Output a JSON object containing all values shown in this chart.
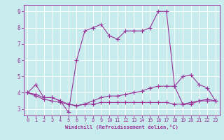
{
  "xlabel": "Windchill (Refroidissement éolien,°C)",
  "background_color": "#c8ecee",
  "grid_color": "#ffffff",
  "line_color": "#993399",
  "xmin": 0,
  "xmax": 23,
  "ymin": 3,
  "ymax": 9,
  "series": [
    [
      4.0,
      4.5,
      3.7,
      3.7,
      3.5,
      2.8,
      6.0,
      7.8,
      8.0,
      8.2,
      7.5,
      7.3,
      7.8,
      7.8,
      7.8,
      8.0,
      9.0,
      9.0,
      4.4,
      5.0,
      5.1,
      4.5,
      4.3,
      3.5
    ],
    [
      4.0,
      3.9,
      3.7,
      3.7,
      3.5,
      3.3,
      3.2,
      3.3,
      3.5,
      3.7,
      3.8,
      3.8,
      3.9,
      4.0,
      4.1,
      4.3,
      4.4,
      4.4,
      4.4,
      3.3,
      3.4,
      3.5,
      3.6,
      3.5
    ],
    [
      4.0,
      3.8,
      3.6,
      3.5,
      3.4,
      3.3,
      3.2,
      3.3,
      3.3,
      3.4,
      3.4,
      3.4,
      3.4,
      3.4,
      3.4,
      3.4,
      3.4,
      3.4,
      3.3,
      3.3,
      3.3,
      3.5,
      3.5,
      3.5
    ]
  ],
  "xtick_labels": [
    "0",
    "1",
    "2",
    "3",
    "4",
    "5",
    "6",
    "7",
    "8",
    "9",
    "10",
    "11",
    "12",
    "13",
    "14",
    "15",
    "16",
    "17",
    "18",
    "19",
    "20",
    "21",
    "22",
    "23"
  ],
  "ytick_labels": [
    "3",
    "4",
    "5",
    "6",
    "7",
    "8",
    "9"
  ],
  "marker_size": 2.0,
  "line_width": 0.8,
  "tick_fontsize": 5.0,
  "xlabel_fontsize": 5.2
}
